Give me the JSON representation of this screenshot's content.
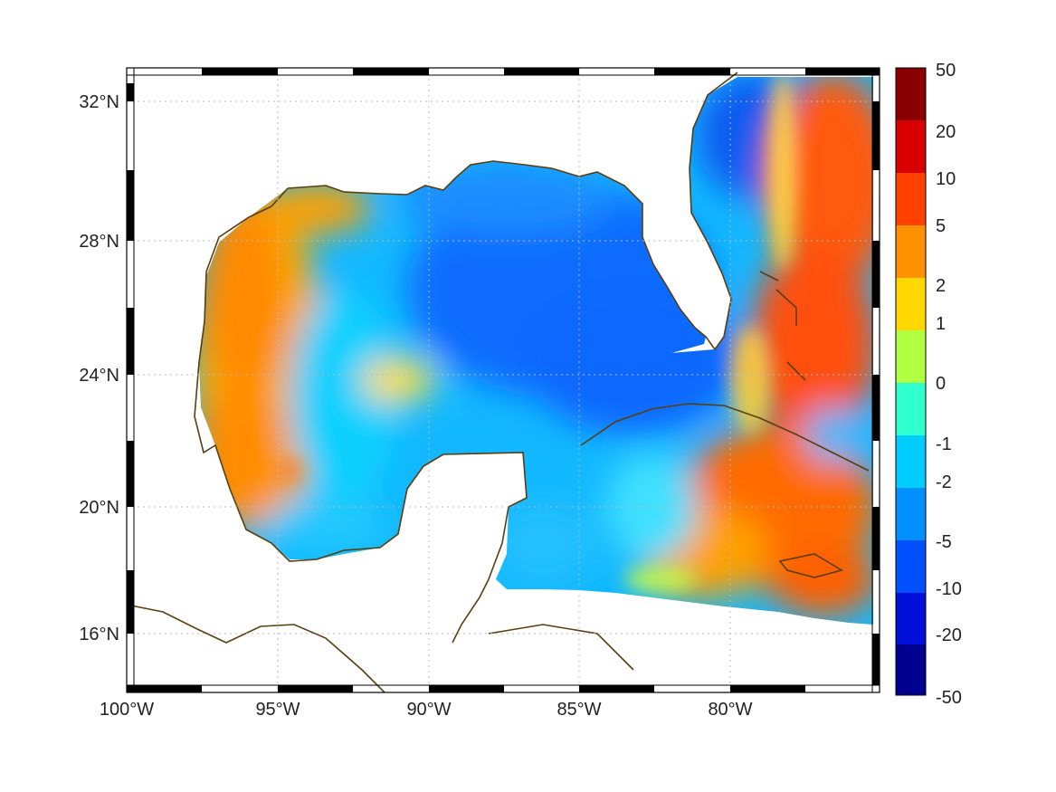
{
  "map": {
    "lon_ticks": [
      "100°W",
      "95°W",
      "90°W",
      "85°W",
      "80°W"
    ],
    "lat_ticks": [
      "32°N",
      "28°N",
      "24°N",
      "20°N",
      "16°N"
    ],
    "lon_values": [
      -100,
      -95,
      -90,
      -85,
      -80
    ],
    "lat_values": [
      32,
      28,
      24,
      20,
      16
    ],
    "extent": {
      "lon_min": -100,
      "lon_max": -75,
      "lat_min": 14.5,
      "lat_max": 33
    },
    "coast_color": "#5a3d10",
    "land_color": "#ffffff",
    "grid": true
  },
  "colorbar": {
    "labels": [
      "50",
      "20",
      "10",
      "5",
      "2",
      "1",
      "0",
      "-1",
      "-2",
      "-5",
      "-10",
      "-20",
      "-50"
    ],
    "colors": [
      "#7f0000",
      "#d10000",
      "#ff3c00",
      "#ff8c00",
      "#ffd000",
      "#d8ff20",
      "#20ffc0",
      "#00d8ff",
      "#00a8ff",
      "#0068ff",
      "#0020e0",
      "#00008c"
    ]
  },
  "field": {
    "palette": {
      "low": "#0038ff",
      "mid": "#00e0ff",
      "zero": "#8cff60",
      "high": "#ffd000",
      "hot": "#ff7a00",
      "max": "#e82000"
    }
  }
}
